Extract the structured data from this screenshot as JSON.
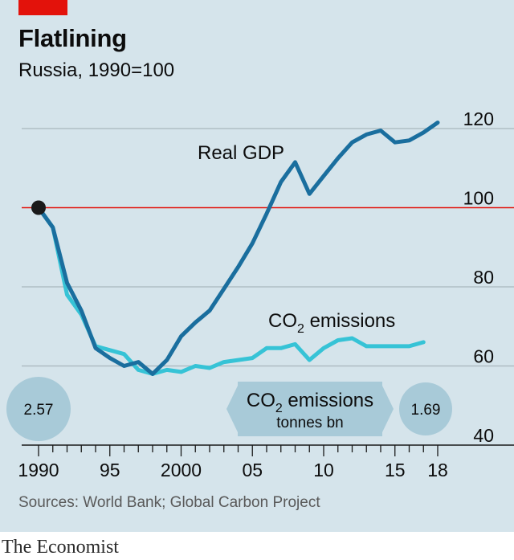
{
  "header": {
    "title": "Flatlining",
    "subtitle": "Russia, 1990=100"
  },
  "footer": {
    "source": "Sources: World Bank; Global Carbon Project",
    "brand": "The Economist"
  },
  "colors": {
    "panel": "#d5e4eb",
    "gdp": "#1a6e9e",
    "co2": "#36c3d6",
    "baseline": "#e3120b",
    "grid": "#a9b6bc",
    "bubble": "#a8cad8",
    "start_dot": "#1a1a1a"
  },
  "chart_data": {
    "type": "line",
    "x_range": [
      1990,
      2018
    ],
    "y_range": [
      40,
      120
    ],
    "y_ticks": [
      120,
      100,
      80,
      60,
      40
    ],
    "x_tick_labels": [
      {
        "value": 1990,
        "label": "1990"
      },
      {
        "value": 1995,
        "label": "95"
      },
      {
        "value": 2000,
        "label": "2000"
      },
      {
        "value": 2005,
        "label": "05"
      },
      {
        "value": 2010,
        "label": "10"
      },
      {
        "value": 2015,
        "label": "15"
      },
      {
        "value": 2018,
        "label": "18"
      }
    ],
    "baseline": 100,
    "series": [
      {
        "name": "Real GDP",
        "key": "gdp",
        "points": [
          [
            1990,
            100
          ],
          [
            1991,
            95
          ],
          [
            1992,
            81
          ],
          [
            1993,
            74
          ],
          [
            1994,
            64.5
          ],
          [
            1995,
            62
          ],
          [
            1996,
            60
          ],
          [
            1997,
            61
          ],
          [
            1998,
            58
          ],
          [
            1999,
            61.5
          ],
          [
            2000,
            67.5
          ],
          [
            2001,
            71
          ],
          [
            2002,
            74
          ],
          [
            2003,
            79.5
          ],
          [
            2004,
            85
          ],
          [
            2005,
            91
          ],
          [
            2006,
            98.5
          ],
          [
            2007,
            106.5
          ],
          [
            2008,
            111.5
          ],
          [
            2009,
            103.5
          ],
          [
            2010,
            108
          ],
          [
            2011,
            112.5
          ],
          [
            2012,
            116.5
          ],
          [
            2013,
            118.5
          ],
          [
            2014,
            119.5
          ],
          [
            2015,
            116.5
          ],
          [
            2016,
            117
          ],
          [
            2017,
            119
          ],
          [
            2018,
            121.5
          ]
        ]
      },
      {
        "name": "CO2 emissions",
        "key": "co2",
        "points": [
          [
            1990,
            100
          ],
          [
            1991,
            95
          ],
          [
            1992,
            78
          ],
          [
            1993,
            73
          ],
          [
            1994,
            65
          ],
          [
            1995,
            64
          ],
          [
            1996,
            63
          ],
          [
            1997,
            59
          ],
          [
            1998,
            58
          ],
          [
            1999,
            59
          ],
          [
            2000,
            58.5
          ],
          [
            2001,
            60
          ],
          [
            2002,
            59.5
          ],
          [
            2003,
            61
          ],
          [
            2004,
            61.5
          ],
          [
            2005,
            62
          ],
          [
            2006,
            64.5
          ],
          [
            2007,
            64.5
          ],
          [
            2008,
            65.5
          ],
          [
            2009,
            61.5
          ],
          [
            2010,
            64.5
          ],
          [
            2011,
            66.5
          ],
          [
            2012,
            67
          ],
          [
            2013,
            65
          ],
          [
            2014,
            65
          ],
          [
            2015,
            65
          ],
          [
            2016,
            65
          ],
          [
            2017,
            66
          ]
        ]
      }
    ],
    "annotations": {
      "gdp_label": "Real GDP",
      "co2_label_main": "CO",
      "co2_label_sub": "2",
      "co2_label_rest": " emissions",
      "box_main": "CO",
      "box_sub": "2",
      "box_rest": " emissions",
      "box_unit": "tonnes bn",
      "start_value": "2.57",
      "end_value": "1.69"
    }
  }
}
